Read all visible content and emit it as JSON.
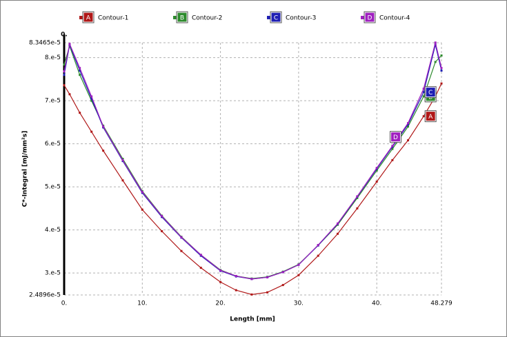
{
  "chart_data": {
    "type": "line",
    "xlabel": "Length [mm]",
    "ylabel": "C*-Integral [mJ/mm²s]",
    "top_label": "0.",
    "grid": true,
    "legend": "top",
    "xlim": [
      0,
      48.279
    ],
    "ylim": [
      2.4896e-05,
      8.3465e-05
    ],
    "xticks": [
      {
        "value": 0,
        "label": "0."
      },
      {
        "value": 10,
        "label": "10."
      },
      {
        "value": 20,
        "label": "20."
      },
      {
        "value": 30,
        "label": "30."
      },
      {
        "value": 40,
        "label": "40."
      },
      48.279
    ],
    "yticks": [
      {
        "value": 2.4896e-05,
        "label": "2.4896e-5"
      },
      {
        "value": 3e-05,
        "label": "3.e-5"
      },
      {
        "value": 4e-05,
        "label": "4.e-5"
      },
      {
        "value": 5e-05,
        "label": "5.e-5"
      },
      {
        "value": 6e-05,
        "label": "6.e-5"
      },
      {
        "value": 7e-05,
        "label": "7.e-5"
      },
      {
        "value": 8e-05,
        "label": "8.e-5"
      },
      {
        "value": 8.3465e-05,
        "label": "8.3465e-5"
      }
    ],
    "x": [
      0,
      0.7,
      2,
      3.5,
      5,
      7.5,
      10,
      12.5,
      15,
      17.5,
      20,
      22,
      24,
      26,
      28,
      30,
      32.5,
      35,
      37.5,
      40,
      42,
      44,
      46,
      47.5,
      48.279
    ],
    "series": [
      {
        "name": "Contour-1",
        "letter": "A",
        "color": "#b01818",
        "values": [
          7.36e-05,
          7.15e-05,
          6.72e-05,
          6.28e-05,
          5.84e-05,
          5.15e-05,
          4.47e-05,
          3.97e-05,
          3.51e-05,
          3.12e-05,
          2.79e-05,
          2.6e-05,
          2.5e-05,
          2.55e-05,
          2.72e-05,
          2.95e-05,
          3.4e-05,
          3.91e-05,
          4.5e-05,
          5.12e-05,
          5.62e-05,
          6.08e-05,
          6.64e-05,
          7.1e-05,
          7.4e-05
        ]
      },
      {
        "name": "Contour-2",
        "letter": "B",
        "color": "#2e8b2e",
        "values": [
          7.84e-05,
          8.27e-05,
          7.6e-05,
          7e-05,
          6.42e-05,
          5.65e-05,
          4.9e-05,
          4.33e-05,
          3.84e-05,
          3.42e-05,
          3.07e-05,
          2.93e-05,
          2.87e-05,
          2.91e-05,
          3.03e-05,
          3.2e-05,
          3.64e-05,
          4.12e-05,
          4.74e-05,
          5.38e-05,
          5.88e-05,
          6.4e-05,
          7.1e-05,
          7.9e-05,
          8.05e-05
        ]
      },
      {
        "name": "Contour-3",
        "letter": "C",
        "color": "#1f1fb4",
        "values": [
          7.6e-05,
          8.3e-05,
          7.7e-05,
          7.05e-05,
          6.38e-05,
          5.6e-05,
          4.86e-05,
          4.3e-05,
          3.82e-05,
          3.4e-05,
          3.05e-05,
          2.92e-05,
          2.86e-05,
          2.9e-05,
          3.02e-05,
          3.19e-05,
          3.64e-05,
          4.14e-05,
          4.77e-05,
          5.42e-05,
          5.93e-05,
          6.45e-05,
          7.2e-05,
          8.3e-05,
          7.7e-05
        ]
      },
      {
        "name": "Contour-4",
        "letter": "D",
        "color": "#a020c0",
        "values": [
          7.68e-05,
          8.32e-05,
          7.76e-05,
          7.1e-05,
          6.4e-05,
          5.62e-05,
          4.88e-05,
          4.32e-05,
          3.83e-05,
          3.42e-05,
          3.06e-05,
          2.93e-05,
          2.86e-05,
          2.9e-05,
          3.02e-05,
          3.19e-05,
          3.65e-05,
          4.15e-05,
          4.78e-05,
          5.44e-05,
          5.95e-05,
          6.48e-05,
          7.28e-05,
          8.35e-05,
          7.76e-05
        ]
      }
    ]
  }
}
